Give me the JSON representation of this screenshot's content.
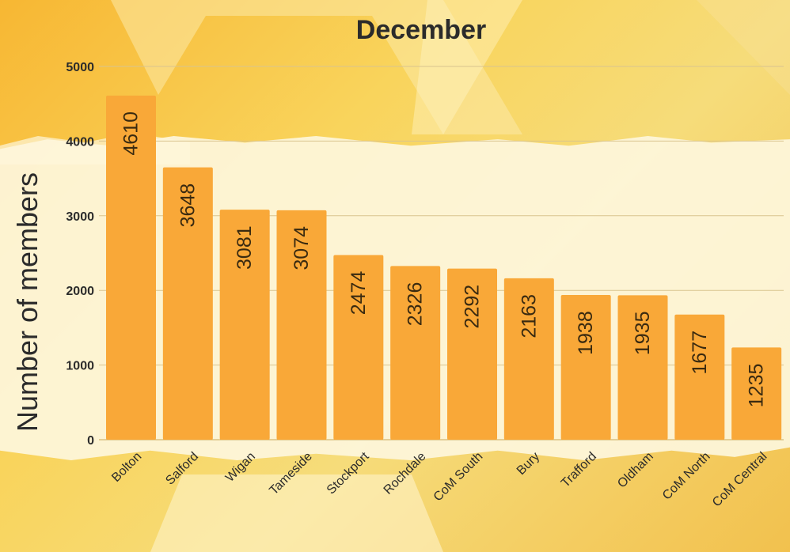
{
  "chart_data": {
    "type": "bar",
    "title": "December",
    "ylabel": "Number of members",
    "xlabel": "",
    "categories": [
      "Bolton",
      "Salford",
      "Wigan",
      "Tameside",
      "Stockport",
      "Rochdale",
      "CoM South",
      "Bury",
      "Trafford",
      "Oldham",
      "CoM North",
      "CoM Central"
    ],
    "values": [
      4610,
      3648,
      3081,
      3074,
      2474,
      2326,
      2292,
      2163,
      1938,
      1935,
      1677,
      1235
    ],
    "ylim": [
      0,
      5000
    ],
    "yticks": [
      0,
      1000,
      2000,
      3000,
      4000,
      5000
    ],
    "grid": "horizontal",
    "bar_color": "#f9a838",
    "data_labels": "inside-rotated"
  }
}
